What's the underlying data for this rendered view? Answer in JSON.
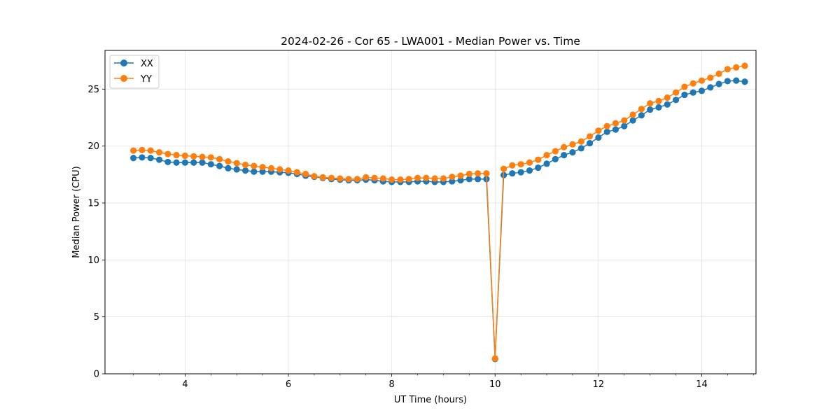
{
  "chart_data": {
    "type": "line",
    "title": "2024-02-26 - Cor 65 - LWA001 - Median Power vs. Time",
    "xlabel": "UT Time (hours)",
    "ylabel": "Median Power (CPU)",
    "xlim": [
      2.45,
      15.05
    ],
    "ylim": [
      0,
      28.4
    ],
    "xticks": [
      4,
      6,
      8,
      10,
      12,
      14
    ],
    "yticks": [
      0,
      5,
      10,
      15,
      20,
      25
    ],
    "grid": true,
    "legend_position": "top-left",
    "x": [
      3.0,
      3.167,
      3.333,
      3.5,
      3.667,
      3.833,
      4.0,
      4.167,
      4.333,
      4.5,
      4.667,
      4.833,
      5.0,
      5.167,
      5.333,
      5.5,
      5.667,
      5.833,
      6.0,
      6.167,
      6.333,
      6.5,
      6.667,
      6.833,
      7.0,
      7.167,
      7.333,
      7.5,
      7.667,
      7.833,
      8.0,
      8.167,
      8.333,
      8.5,
      8.667,
      8.833,
      9.0,
      9.167,
      9.333,
      9.5,
      9.667,
      9.833,
      10.0,
      10.167,
      10.333,
      10.5,
      10.667,
      10.833,
      11.0,
      11.167,
      11.333,
      11.5,
      11.667,
      11.833,
      12.0,
      12.167,
      12.333,
      12.5,
      12.667,
      12.833,
      13.0,
      13.167,
      13.333,
      13.5,
      13.667,
      13.833,
      14.0,
      14.167,
      14.333,
      14.5,
      14.667,
      14.833
    ],
    "series": [
      {
        "name": "XX",
        "color": "#1f77b4",
        "values": [
          18.95,
          19.0,
          18.95,
          18.8,
          18.6,
          18.55,
          18.55,
          18.55,
          18.55,
          18.4,
          18.25,
          18.05,
          17.95,
          17.85,
          17.75,
          17.75,
          17.75,
          17.7,
          17.65,
          17.55,
          17.4,
          17.3,
          17.2,
          17.1,
          17.05,
          17.0,
          17.0,
          17.05,
          17.0,
          16.9,
          16.85,
          16.85,
          16.85,
          16.9,
          16.9,
          16.85,
          16.85,
          16.9,
          17.0,
          17.1,
          17.1,
          17.1,
          1.3,
          17.45,
          17.6,
          17.7,
          17.85,
          18.1,
          18.45,
          18.85,
          19.2,
          19.45,
          19.8,
          20.25,
          20.75,
          21.25,
          21.45,
          21.75,
          22.25,
          22.7,
          23.2,
          23.4,
          23.65,
          24.05,
          24.5,
          24.7,
          24.85,
          25.15,
          25.45,
          25.7,
          25.75,
          25.65
        ]
      },
      {
        "name": "YY",
        "color": "#ff7f0e",
        "values": [
          19.6,
          19.65,
          19.6,
          19.45,
          19.3,
          19.2,
          19.15,
          19.1,
          19.05,
          19.0,
          18.85,
          18.65,
          18.5,
          18.35,
          18.25,
          18.15,
          18.05,
          17.95,
          17.85,
          17.7,
          17.55,
          17.35,
          17.25,
          17.2,
          17.15,
          17.1,
          17.1,
          17.25,
          17.2,
          17.15,
          17.05,
          17.05,
          17.1,
          17.2,
          17.2,
          17.15,
          17.15,
          17.3,
          17.4,
          17.55,
          17.6,
          17.6,
          1.35,
          18.0,
          18.3,
          18.4,
          18.55,
          18.8,
          19.2,
          19.55,
          19.9,
          20.15,
          20.4,
          20.85,
          21.35,
          21.75,
          22.0,
          22.25,
          22.75,
          23.25,
          23.75,
          23.95,
          24.25,
          24.7,
          25.2,
          25.5,
          25.75,
          26.0,
          26.35,
          26.75,
          26.9,
          27.05
        ]
      }
    ]
  }
}
